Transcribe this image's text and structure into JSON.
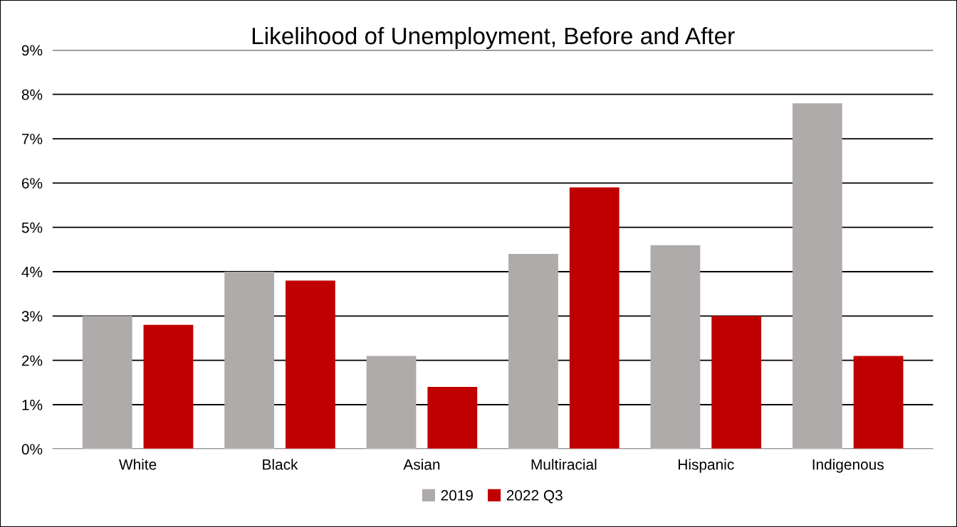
{
  "chart_data": {
    "type": "bar",
    "title": "Likelihood of Unemployment, Before and After",
    "categories": [
      "White",
      "Black",
      "Asian",
      "Multiracial",
      "Hispanic",
      "Indigenous"
    ],
    "series": [
      {
        "name": "2019",
        "color": "#afabab",
        "values": [
          3.0,
          4.0,
          2.1,
          4.4,
          4.6,
          7.8
        ]
      },
      {
        "name": "2022 Q3",
        "color": "#c00000",
        "values": [
          2.8,
          3.8,
          1.4,
          5.9,
          3.0,
          2.1
        ]
      }
    ],
    "ylim": [
      0,
      9
    ],
    "yticks": [
      {
        "value": 0,
        "label": "0%"
      },
      {
        "value": 1,
        "label": "1%"
      },
      {
        "value": 2,
        "label": "2%"
      },
      {
        "value": 3,
        "label": "3%"
      },
      {
        "value": 4,
        "label": "4%"
      },
      {
        "value": 5,
        "label": "5%"
      },
      {
        "value": 6,
        "label": "6%"
      },
      {
        "value": 7,
        "label": "7%"
      },
      {
        "value": 8,
        "label": "8%"
      },
      {
        "value": 9,
        "label": "9%"
      }
    ],
    "grid": "y",
    "legend": "bottom"
  }
}
